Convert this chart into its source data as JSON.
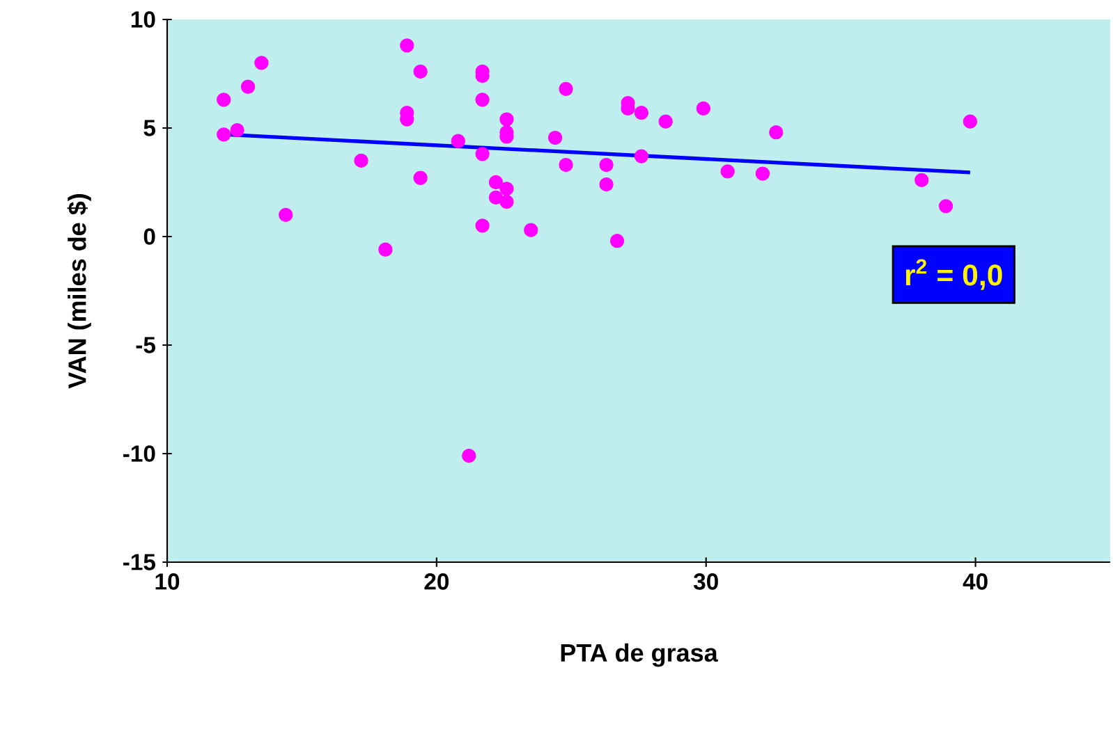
{
  "chart_data": {
    "type": "scatter",
    "xlabel": "PTA de grasa",
    "ylabel": "VAN (miles de $)",
    "xlim": [
      10,
      45
    ],
    "ylim": [
      -15,
      10
    ],
    "xticks": [
      10,
      20,
      30,
      40
    ],
    "yticks": [
      -15,
      -10,
      -5,
      0,
      5,
      10
    ],
    "grid": false,
    "annotations": [
      "r$^{2}$ = 0,0"
    ],
    "series": [
      {
        "marker": "circle",
        "color": "#ff00ff",
        "x": [
          12.1,
          12.1,
          12.6,
          13.0,
          13.5,
          14.4,
          17.2,
          18.1,
          18.9,
          18.9,
          18.9,
          19.4,
          19.4,
          20.8,
          21.7,
          21.7,
          21.7,
          21.7,
          21.7,
          21.2,
          22.2,
          22.2,
          22.6,
          22.6,
          22.6,
          22.6,
          22.6,
          23.5,
          24.8,
          27.1,
          27.1,
          27.6,
          28.5,
          29.9,
          32.6,
          24.4,
          24.8,
          26.3,
          26.3,
          27.6,
          30.8,
          32.1,
          26.7,
          39.8,
          38.0,
          38.9
        ],
        "values": [
          6.3,
          4.7,
          4.9,
          6.9,
          8.0,
          1.0,
          3.5,
          -0.6,
          8.8,
          5.7,
          5.4,
          7.6,
          2.7,
          4.4,
          7.6,
          7.4,
          6.3,
          3.8,
          0.5,
          -10.1,
          2.5,
          1.8,
          5.4,
          4.8,
          4.6,
          2.2,
          1.6,
          0.3,
          6.8,
          6.15,
          5.9,
          5.7,
          5.3,
          5.9,
          4.8,
          4.55,
          3.3,
          3.3,
          2.4,
          3.7,
          3.0,
          2.9,
          -0.2,
          5.3,
          2.6,
          1.4
        ]
      },
      {
        "type": "line",
        "marker": "none",
        "color": "#0000ff",
        "x": [
          12.2,
          39.8
        ],
        "values": [
          4.7,
          2.95
        ]
      }
    ]
  }
}
